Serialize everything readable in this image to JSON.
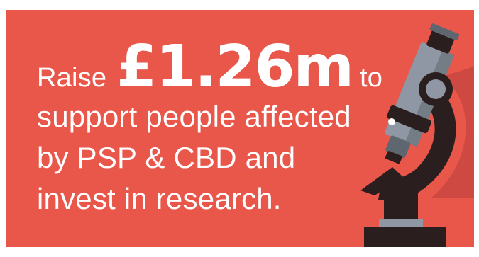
{
  "headline": {
    "prefix": "Raise",
    "amount": "£1.26m",
    "suffix": "to",
    "line2": "support people affected",
    "line3": "by PSP & CBD and",
    "line4": "invest in research."
  },
  "colors": {
    "background": "#E9564A",
    "text": "#FFFFFF",
    "microscope_dark": "#2A1E1F",
    "microscope_grey": "#8E97A3",
    "microscope_grey_dark": "#5E6670",
    "shadow": "#B7403A"
  },
  "icon": "microscope-icon"
}
